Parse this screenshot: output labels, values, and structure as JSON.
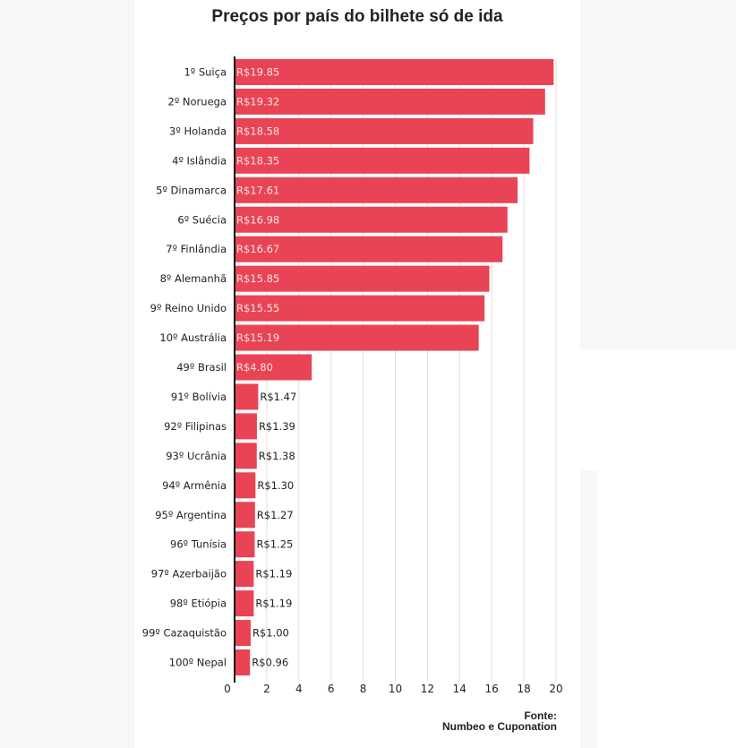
{
  "chart_data": {
    "type": "bar",
    "orientation": "horizontal",
    "title": "Preços por país do bilhete só de ida",
    "source_label": "Fonte:",
    "source": "Numbeo e Cuponation",
    "value_prefix": "R$",
    "categories": [
      "1º Suiça",
      "2º Noruega",
      "3º Holanda",
      "4º Islândia",
      "5º Dinamarca",
      "6º Suécia",
      "7º Finlândia",
      "8º Alemanhã",
      "9º Reino Unido",
      "10º Austrália",
      "49º Brasil",
      "91º Bolívia",
      "92º Filipinas",
      "93º Ucrânia",
      "94º Armênia",
      "95º Argentina",
      "96º Tunísia",
      "97º Azerbaijão",
      "98º Etiópia",
      "99º Cazaquistão",
      "100º Nepal"
    ],
    "values": [
      19.85,
      19.32,
      18.58,
      18.35,
      17.61,
      16.98,
      16.67,
      15.85,
      15.55,
      15.19,
      4.8,
      1.47,
      1.39,
      1.38,
      1.3,
      1.27,
      1.25,
      1.19,
      1.19,
      1.0,
      0.96
    ],
    "value_labels": [
      "R$19.85",
      "R$19.32",
      "R$18.58",
      "R$18.35",
      "R$17.61",
      "R$16.98",
      "R$16.67",
      "R$15.85",
      "R$15.55",
      "R$15.19",
      "R$4.80",
      "R$1.47",
      "R$1.39",
      "R$1.38",
      "R$1.30",
      "R$1.27",
      "R$1.25",
      "R$1.19",
      "R$1.19",
      "R$1.00",
      "R$0.96"
    ],
    "xlim": [
      0,
      20
    ],
    "xticks": [
      0,
      2,
      4,
      6,
      8,
      10,
      12,
      14,
      16,
      18,
      20
    ],
    "grid": true,
    "bar_color": "#e84455",
    "grid_color": "#e2dfd0",
    "label_inside_color": "#fbe3e5",
    "label_outside_color": "#222222"
  }
}
